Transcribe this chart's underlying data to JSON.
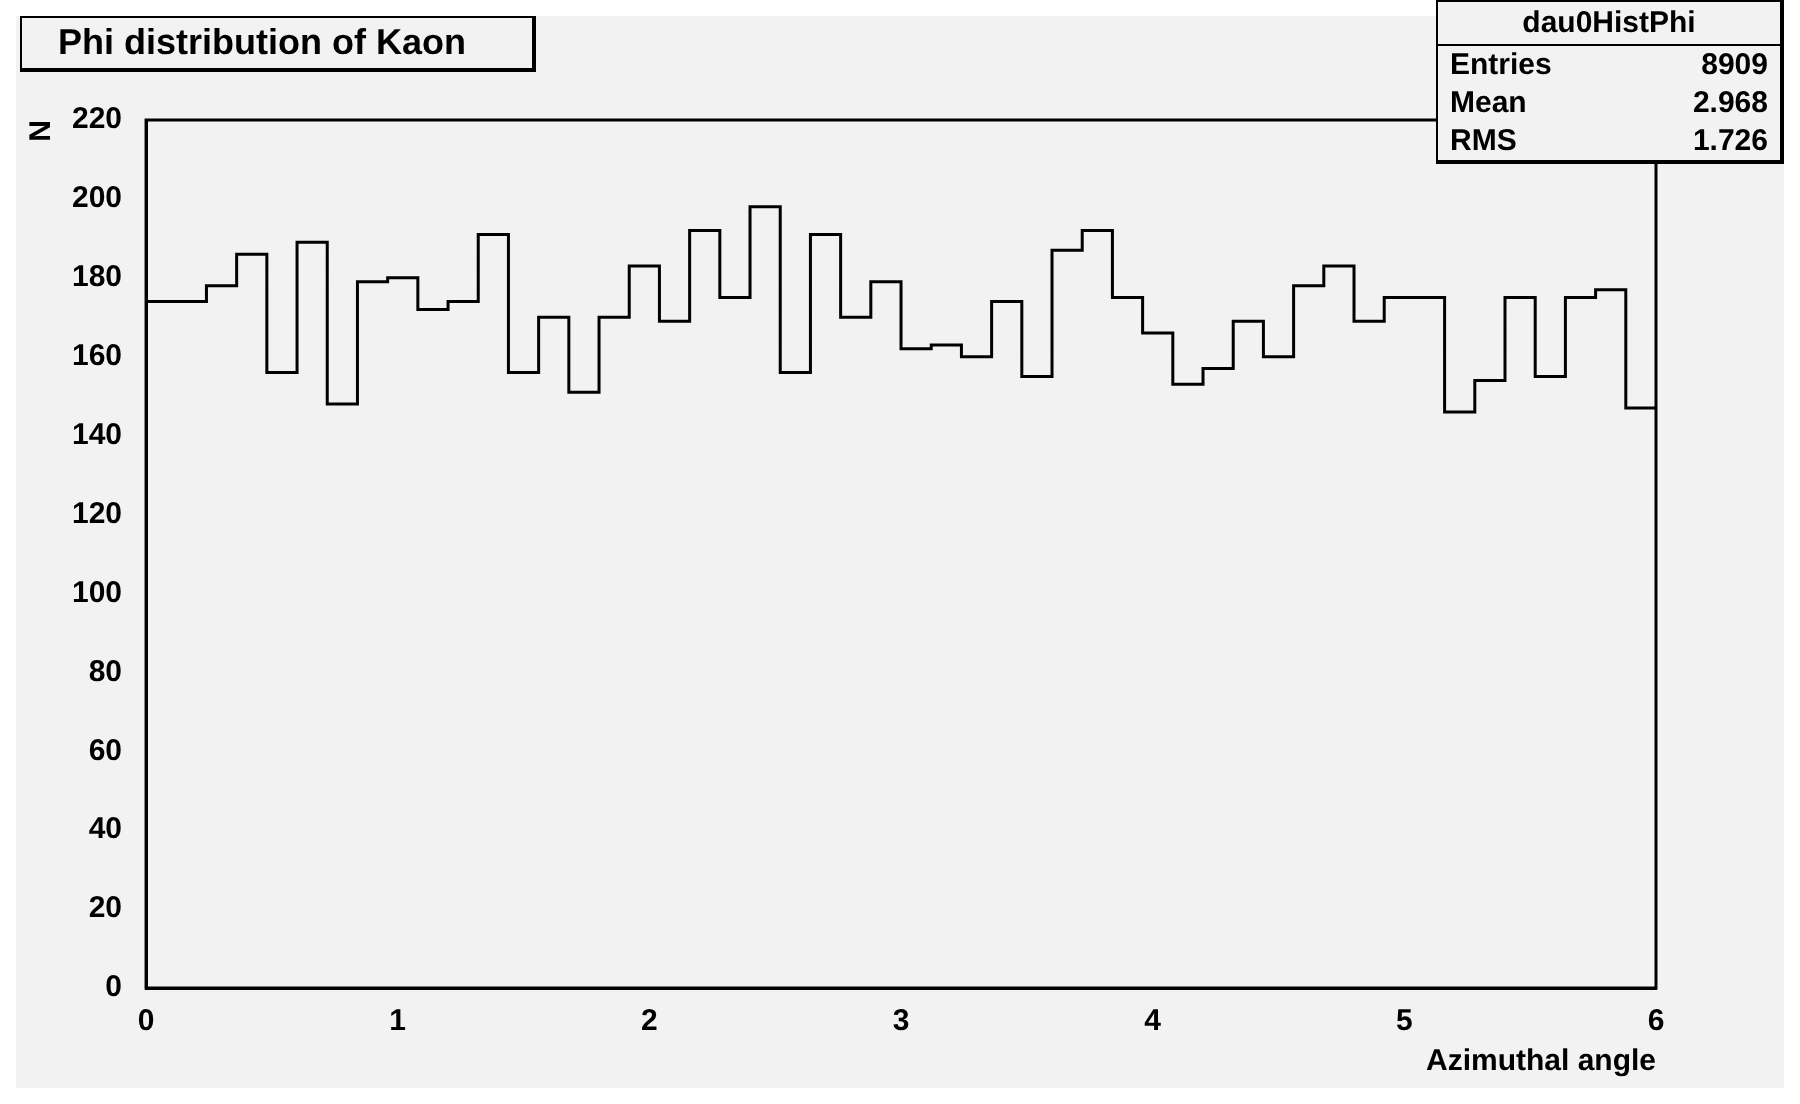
{
  "chart_data": {
    "type": "histogram",
    "title": "Phi distribution of Kaon",
    "xlabel": "Azimuthal angle",
    "ylabel": "N",
    "bins": [
      0,
      0.12,
      0.24,
      0.36,
      0.48,
      0.6,
      0.72,
      0.84,
      0.96,
      1.08,
      1.2,
      1.32,
      1.44,
      1.56,
      1.68,
      1.8,
      1.92,
      2.04,
      2.16,
      2.28,
      2.4,
      2.52,
      2.64,
      2.76,
      2.88,
      3,
      3.12,
      3.24,
      3.36,
      3.48,
      3.6,
      3.72,
      3.84,
      3.96,
      4.08,
      4.2,
      4.32,
      4.44,
      4.56,
      4.68,
      4.8,
      4.92,
      5.04,
      5.16,
      5.28,
      5.4,
      5.52,
      5.64,
      5.76,
      5.88,
      6
    ],
    "values": [
      174,
      174,
      178,
      186,
      156,
      189,
      148,
      179,
      180,
      172,
      174,
      191,
      156,
      170,
      151,
      170,
      183,
      169,
      192,
      175,
      198,
      156,
      191,
      170,
      179,
      162,
      163,
      160,
      174,
      155,
      187,
      192,
      175,
      166,
      153,
      157,
      169,
      160,
      178,
      183,
      169,
      175,
      175,
      146,
      154,
      175,
      155,
      175,
      177,
      147
    ],
    "color": "#000000",
    "xlim": [
      0,
      6
    ],
    "xticks": [
      0,
      1,
      2,
      3,
      4,
      5,
      6
    ],
    "ylim": [
      0,
      220
    ],
    "yticks": [
      0,
      20,
      40,
      60,
      80,
      100,
      120,
      140,
      160,
      180,
      200,
      220
    ],
    "grid": false,
    "legend": false,
    "annotations": [
      "dau0HistPhi",
      "Entries",
      "8909",
      "Mean",
      "2.968",
      "RMS",
      "1.726"
    ]
  }
}
